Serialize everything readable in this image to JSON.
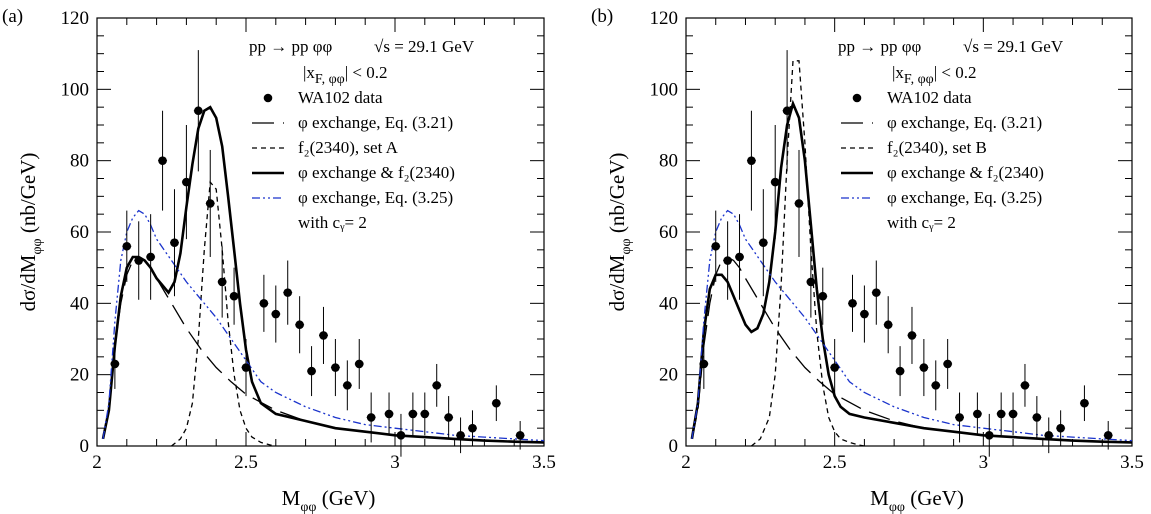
{
  "chart_data": [
    {
      "type": "scatter",
      "panel_label": "(a)",
      "reaction": "pp → pp φφ",
      "energy": "√s = 29.1 GeV",
      "cut": {
        "prefix": "|x",
        "sub": "F, φφ",
        "suffix": "| < 0.2"
      },
      "ylabel": {
        "main": "dσ/dM",
        "sub": "φφ",
        "unit": " (nb/GeV)"
      },
      "xlabel": {
        "main": "M",
        "sub": "φφ",
        "unit": " (GeV)"
      },
      "xlim": [
        2.0,
        3.5
      ],
      "ylim": [
        0,
        120
      ],
      "xticks": [
        2,
        2.5,
        3,
        3.5
      ],
      "xtick_labels": [
        "2",
        "2.5",
        "3",
        "3.5"
      ],
      "yticks": [
        0,
        20,
        40,
        60,
        80,
        100,
        120
      ],
      "ytick_labels": [
        "0",
        "20",
        "40",
        "60",
        "80",
        "100",
        "120"
      ],
      "legend": [
        {
          "text": "WA102 data",
          "style": "marker"
        },
        {
          "text": "φ exchange, Eq. (3.21)",
          "style": "longdash"
        },
        {
          "text": "f₂(2340), set A",
          "style": "shortdash"
        },
        {
          "text": "φ exchange & f₂(2340)",
          "style": "solid"
        },
        {
          "text": "φ exchange, Eq. (3.25)",
          "style": "dashdotdot"
        },
        {
          "text": "with cᵧ= 2",
          "style": "none"
        }
      ],
      "data_points": {
        "name": "WA102 data",
        "x": [
          2.06,
          2.1,
          2.14,
          2.18,
          2.22,
          2.26,
          2.3,
          2.34,
          2.38,
          2.42,
          2.46,
          2.5,
          2.56,
          2.6,
          2.64,
          2.68,
          2.72,
          2.76,
          2.8,
          2.84,
          2.88,
          2.92,
          2.98,
          3.02,
          3.06,
          3.1,
          3.14,
          3.18,
          3.22,
          3.26,
          3.34,
          3.42
        ],
        "y": [
          23,
          56,
          52,
          53,
          80,
          57,
          74,
          94,
          68,
          46,
          42,
          22,
          40,
          37,
          43,
          34,
          21,
          31,
          22,
          17,
          23,
          8,
          9,
          3,
          9,
          9,
          17,
          8,
          3,
          5,
          12,
          3
        ],
        "yerr": [
          7,
          10,
          11,
          12,
          14,
          15,
          16,
          17,
          15,
          10,
          8,
          8,
          8,
          8,
          9,
          8,
          7,
          8,
          8,
          7,
          7,
          7,
          6,
          6,
          6,
          6,
          6,
          6,
          5,
          5,
          5,
          4
        ],
        "xerr": 0.015
      },
      "series": [
        {
          "style": "longdash",
          "x": [
            2.02,
            2.04,
            2.06,
            2.08,
            2.1,
            2.12,
            2.14,
            2.16,
            2.18,
            2.2,
            2.25,
            2.3,
            2.35,
            2.4,
            2.45,
            2.5,
            2.6,
            2.7,
            2.8,
            2.9,
            3.0,
            3.1,
            3.2,
            3.3,
            3.4,
            3.5
          ],
          "y": [
            2,
            10,
            28,
            40,
            48,
            52,
            53,
            52,
            50,
            47,
            40,
            33,
            27,
            22,
            18,
            14.5,
            10,
            7,
            5,
            4,
            3,
            2.5,
            2,
            1.5,
            1.2,
            1
          ]
        },
        {
          "style": "shortdash",
          "x": [
            2.25,
            2.28,
            2.3,
            2.32,
            2.34,
            2.36,
            2.38,
            2.4,
            2.42,
            2.44,
            2.46,
            2.48,
            2.5,
            2.52,
            2.55,
            2.58,
            2.6
          ],
          "y": [
            0,
            2,
            5,
            12,
            30,
            55,
            74,
            72,
            55,
            35,
            20,
            10,
            5,
            2.5,
            1,
            0.3,
            0
          ]
        },
        {
          "style": "solid",
          "x": [
            2.02,
            2.04,
            2.06,
            2.08,
            2.1,
            2.12,
            2.14,
            2.16,
            2.18,
            2.2,
            2.22,
            2.24,
            2.26,
            2.28,
            2.3,
            2.32,
            2.34,
            2.36,
            2.38,
            2.4,
            2.42,
            2.44,
            2.46,
            2.48,
            2.5,
            2.52,
            2.55,
            2.6,
            2.7,
            2.8,
            2.9,
            3.0,
            3.1,
            3.2,
            3.3,
            3.4,
            3.5
          ],
          "y": [
            2,
            10,
            28,
            42,
            50,
            53,
            53,
            52,
            50,
            47,
            45,
            43,
            46,
            54,
            67,
            79,
            89,
            94,
            95,
            92,
            84,
            70,
            55,
            40,
            27,
            18,
            12,
            9,
            7,
            5,
            4,
            3,
            2.5,
            2,
            1.5,
            1.2,
            1
          ]
        },
        {
          "style": "dashdotdot",
          "x": [
            2.02,
            2.04,
            2.06,
            2.08,
            2.1,
            2.12,
            2.14,
            2.16,
            2.18,
            2.2,
            2.25,
            2.3,
            2.35,
            2.4,
            2.45,
            2.5,
            2.55,
            2.6,
            2.7,
            2.8,
            2.9,
            3.0,
            3.1,
            3.2,
            3.3,
            3.4,
            3.5
          ],
          "y": [
            2,
            12,
            35,
            52,
            60,
            64,
            66,
            65,
            62,
            58,
            52,
            46,
            41,
            36,
            30,
            24,
            18,
            15,
            11,
            8,
            6,
            5,
            4,
            3,
            2.5,
            2,
            1.5
          ]
        }
      ]
    },
    {
      "type": "scatter",
      "panel_label": "(b)",
      "reaction": "pp → pp φφ",
      "energy": "√s = 29.1 GeV",
      "cut": {
        "prefix": "|x",
        "sub": "F, φφ",
        "suffix": "| < 0.2"
      },
      "ylabel": {
        "main": "dσ/dM",
        "sub": "φφ",
        "unit": " (nb/GeV)"
      },
      "xlabel": {
        "main": "M",
        "sub": "φφ",
        "unit": " (GeV)"
      },
      "xlim": [
        2.0,
        3.5
      ],
      "ylim": [
        0,
        120
      ],
      "xticks": [
        2,
        2.5,
        3,
        3.5
      ],
      "xtick_labels": [
        "2",
        "2.5",
        "3",
        "3.5"
      ],
      "yticks": [
        0,
        20,
        40,
        60,
        80,
        100,
        120
      ],
      "ytick_labels": [
        "0",
        "20",
        "40",
        "60",
        "80",
        "100",
        "120"
      ],
      "legend": [
        {
          "text": "WA102 data",
          "style": "marker"
        },
        {
          "text": "φ exchange, Eq. (3.21)",
          "style": "longdash"
        },
        {
          "text": "f₂(2340), set B",
          "style": "shortdash"
        },
        {
          "text": "φ exchange & f₂(2340)",
          "style": "solid"
        },
        {
          "text": "φ exchange, Eq. (3.25)",
          "style": "dashdotdot"
        },
        {
          "text": "with cᵧ= 2",
          "style": "none"
        }
      ],
      "data_points": {
        "name": "WA102 data",
        "x": [
          2.06,
          2.1,
          2.14,
          2.18,
          2.22,
          2.26,
          2.3,
          2.34,
          2.38,
          2.42,
          2.46,
          2.5,
          2.56,
          2.6,
          2.64,
          2.68,
          2.72,
          2.76,
          2.8,
          2.84,
          2.88,
          2.92,
          2.98,
          3.02,
          3.06,
          3.1,
          3.14,
          3.18,
          3.22,
          3.26,
          3.34,
          3.42
        ],
        "y": [
          23,
          56,
          52,
          53,
          80,
          57,
          74,
          94,
          68,
          46,
          42,
          22,
          40,
          37,
          43,
          34,
          21,
          31,
          22,
          17,
          23,
          8,
          9,
          3,
          9,
          9,
          17,
          8,
          3,
          5,
          12,
          3
        ],
        "yerr": [
          7,
          10,
          11,
          12,
          14,
          15,
          16,
          17,
          15,
          10,
          8,
          8,
          8,
          8,
          9,
          8,
          7,
          8,
          8,
          7,
          7,
          7,
          6,
          6,
          6,
          6,
          6,
          6,
          5,
          5,
          5,
          4
        ],
        "xerr": 0.015
      },
      "series": [
        {
          "style": "longdash",
          "x": [
            2.02,
            2.04,
            2.06,
            2.08,
            2.1,
            2.12,
            2.14,
            2.16,
            2.18,
            2.2,
            2.25,
            2.3,
            2.35,
            2.4,
            2.45,
            2.5,
            2.6,
            2.7,
            2.8,
            2.9,
            3.0,
            3.1,
            3.2,
            3.3,
            3.4,
            3.5
          ],
          "y": [
            2,
            10,
            28,
            40,
            48,
            52,
            53,
            52,
            50,
            47,
            40,
            33,
            27,
            22,
            18,
            14.5,
            10,
            7,
            5,
            4,
            3,
            2.5,
            2,
            1.5,
            1.2,
            1
          ]
        },
        {
          "style": "shortdash",
          "x": [
            2.22,
            2.25,
            2.28,
            2.3,
            2.32,
            2.34,
            2.36,
            2.38,
            2.4,
            2.42,
            2.44,
            2.46,
            2.48,
            2.5,
            2.52,
            2.55,
            2.58,
            2.6
          ],
          "y": [
            0,
            2,
            8,
            20,
            45,
            80,
            108,
            108,
            85,
            55,
            32,
            17,
            8,
            4,
            2,
            1,
            0.3,
            0
          ]
        },
        {
          "style": "solid",
          "x": [
            2.02,
            2.04,
            2.06,
            2.08,
            2.1,
            2.12,
            2.14,
            2.16,
            2.18,
            2.2,
            2.22,
            2.24,
            2.26,
            2.28,
            2.3,
            2.32,
            2.34,
            2.36,
            2.38,
            2.4,
            2.42,
            2.44,
            2.46,
            2.48,
            2.5,
            2.52,
            2.55,
            2.6,
            2.7,
            2.8,
            2.9,
            3.0,
            3.1,
            3.2,
            3.3,
            3.4,
            3.5
          ],
          "y": [
            2,
            12,
            32,
            44,
            48,
            48,
            46,
            42,
            38,
            34,
            32,
            33,
            37,
            46,
            60,
            78,
            90,
            96,
            92,
            80,
            62,
            44,
            30,
            20,
            14,
            11,
            9,
            8,
            6.5,
            5,
            4,
            3,
            2.5,
            2,
            1.5,
            1.2,
            1
          ]
        },
        {
          "style": "dashdotdot",
          "x": [
            2.02,
            2.04,
            2.06,
            2.08,
            2.1,
            2.12,
            2.14,
            2.16,
            2.18,
            2.2,
            2.25,
            2.3,
            2.35,
            2.4,
            2.45,
            2.5,
            2.55,
            2.6,
            2.7,
            2.8,
            2.9,
            3.0,
            3.1,
            3.2,
            3.3,
            3.4,
            3.5
          ],
          "y": [
            2,
            12,
            35,
            52,
            60,
            64,
            66,
            65,
            62,
            58,
            52,
            46,
            41,
            36,
            30,
            24,
            18,
            15,
            11,
            8,
            6,
            5,
            4,
            3,
            2.5,
            2,
            1.5
          ]
        }
      ]
    }
  ]
}
